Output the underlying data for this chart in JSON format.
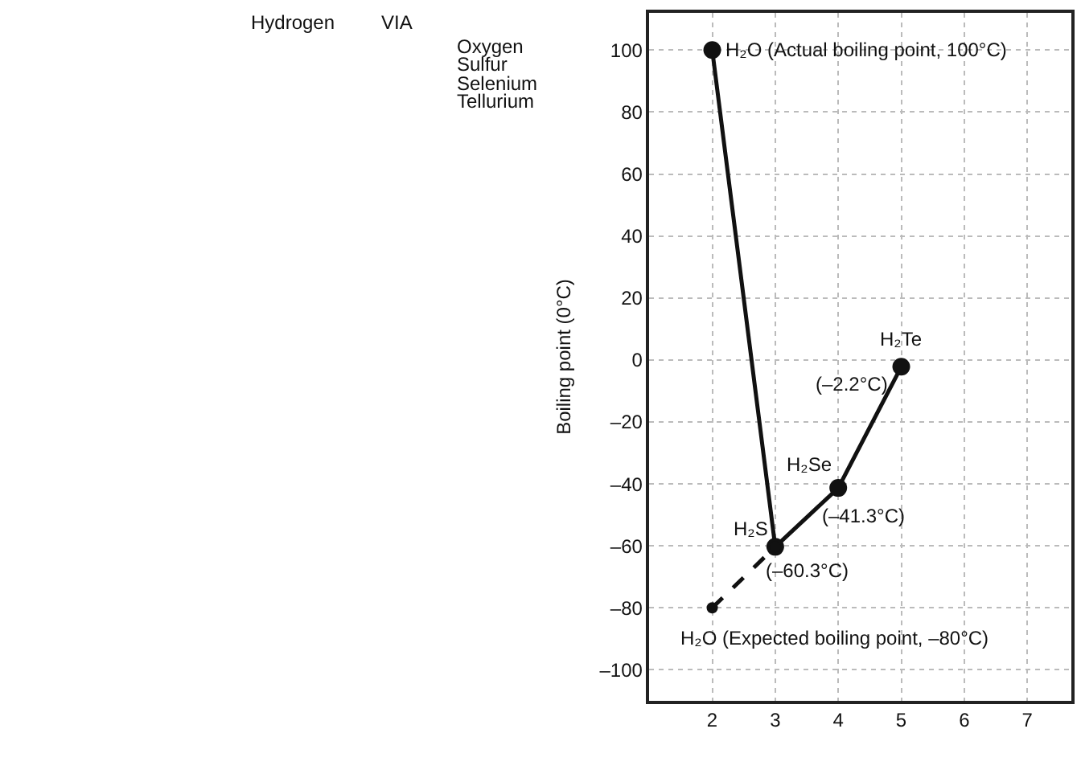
{
  "chart_data": {
    "type": "line",
    "ylabel": "Boiling point (0°C)",
    "x": [
      2,
      3,
      4,
      5
    ],
    "series": [
      {
        "color": "#111111",
        "values": [
          100,
          -60.3,
          -41.3,
          -2.2
        ],
        "line_style": "solid"
      },
      {
        "color": "#111111",
        "x": [
          2,
          3
        ],
        "values": [
          -80,
          -60.3
        ],
        "line_style": "dashed"
      }
    ],
    "marker": "circle",
    "xlim": [
      1,
      7.7
    ],
    "ylim": [
      -110,
      112
    ],
    "xticks": [
      2,
      3,
      4,
      5,
      6,
      7
    ],
    "yticks": [
      {
        "value": -100,
        "label": "–100"
      },
      {
        "value": -80,
        "label": "–80"
      },
      {
        "value": -60,
        "label": "–60"
      },
      {
        "value": -40,
        "label": "–40"
      },
      {
        "value": -20,
        "label": "–20"
      },
      0,
      20,
      40,
      60,
      80,
      100
    ],
    "grid": true,
    "annotations": [
      {
        "text": "H₂O (Actual boiling point, 100°C)",
        "x": 2,
        "y": 100
      },
      {
        "text": "H₂Te",
        "x": 5,
        "y": -2.2
      },
      {
        "text": "(–2.2°C)",
        "x": 5,
        "y": -2.2
      },
      {
        "text": "H₂Se",
        "x": 4,
        "y": -41.3
      },
      {
        "text": "(–41.3°C)",
        "x": 4,
        "y": -41.3
      },
      {
        "text": "H₂S",
        "x": 3,
        "y": -60.3
      },
      {
        "text": "(–60.3°C)",
        "x": 3,
        "y": -60.3
      },
      {
        "text": "H₂O (Expected boiling point, –80°C)",
        "x": 2,
        "y": -80
      },
      "Hydrogen",
      "VIA",
      "Oxygen",
      "Sulfur",
      "Selenium",
      "Tellurium"
    ]
  }
}
